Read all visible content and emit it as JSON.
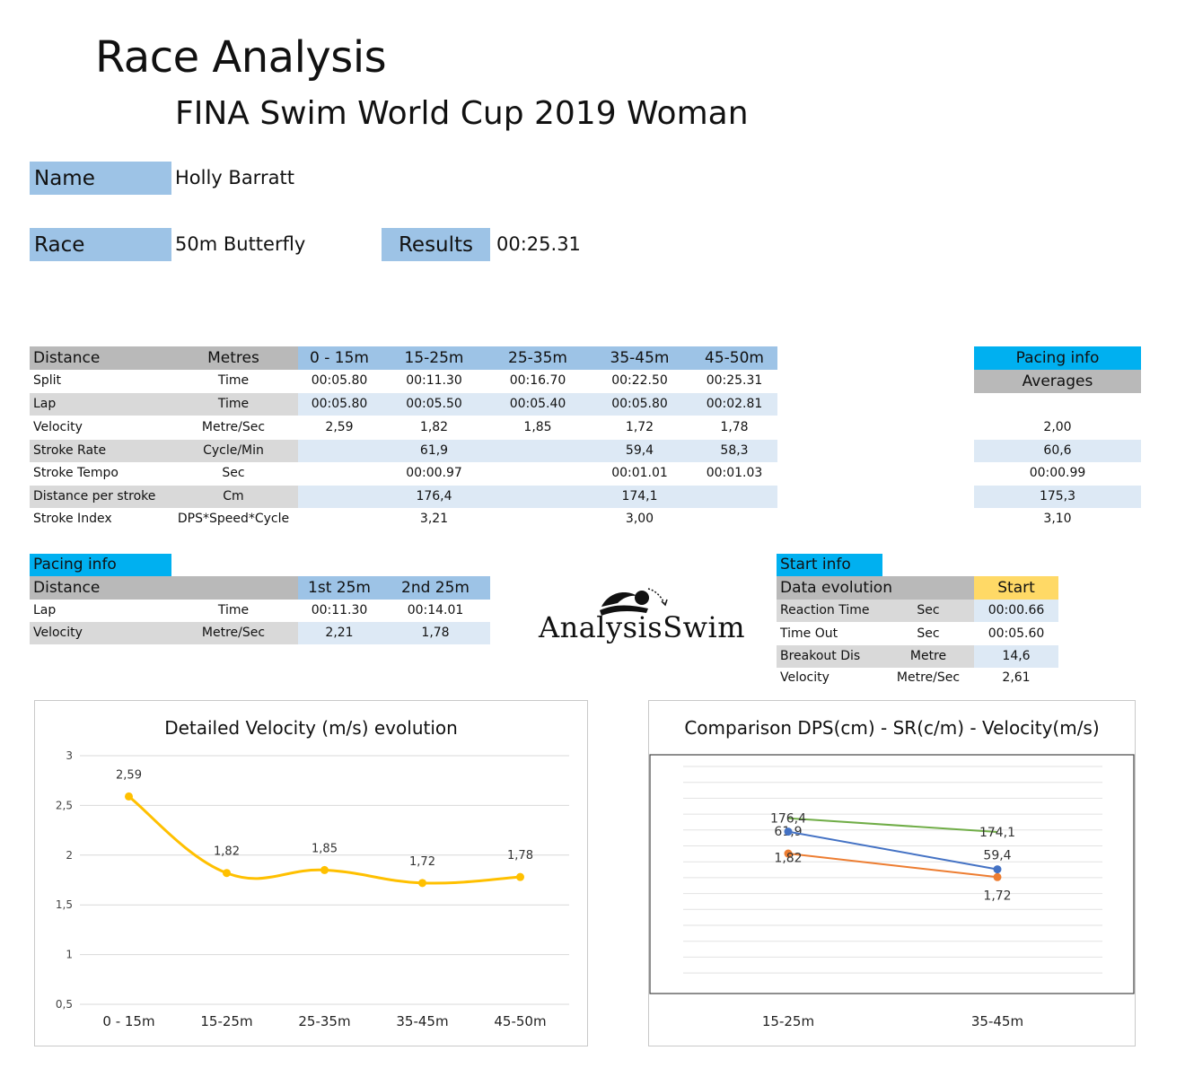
{
  "header": {
    "title": "Race Analysis",
    "subtitle": "FINA Swim World Cup 2019 Woman"
  },
  "athlete": {
    "name_label": "Name",
    "name_value": "Holly Barratt",
    "race_label": "Race",
    "race_value": "50m Butterfly",
    "results_label": "Results",
    "results_value": "00:25.31"
  },
  "splits_table": {
    "col_distance": "Distance",
    "col_metres": "Metres",
    "segments": [
      "0 - 15m",
      "15-25m",
      "25-35m",
      "35-45m",
      "45-50m"
    ],
    "rows": [
      {
        "label": "Split",
        "unit": "Time",
        "values": [
          "00:05.80",
          "00:11.30",
          "00:16.70",
          "00:22.50",
          "00:25.31"
        ],
        "avg": ""
      },
      {
        "label": "Lap",
        "unit": "Time",
        "values": [
          "00:05.80",
          "00:05.50",
          "00:05.40",
          "00:05.80",
          "00:02.81"
        ],
        "avg": ""
      },
      {
        "label": "Velocity",
        "unit": "Metre/Sec",
        "values": [
          "2,59",
          "1,82",
          "1,85",
          "1,72",
          "1,78"
        ],
        "avg": "2,00"
      },
      {
        "label": "Stroke Rate",
        "unit": "Cycle/Min",
        "values": [
          "",
          "61,9",
          "",
          "59,4",
          "58,3"
        ],
        "avg": "60,6"
      },
      {
        "label": "Stroke Tempo",
        "unit": "Sec",
        "values": [
          "",
          "00:00.97",
          "",
          "00:01.01",
          "00:01.03"
        ],
        "avg": "00:00.99"
      },
      {
        "label": "Distance per stroke",
        "unit": "Cm",
        "values": [
          "",
          "176,4",
          "",
          "174,1",
          ""
        ],
        "avg": "175,3"
      },
      {
        "label": "Stroke Index",
        "unit": "DPS*Speed*Cycle",
        "values": [
          "",
          "3,21",
          "",
          "3,00",
          ""
        ],
        "avg": "3,10"
      }
    ],
    "pacing_header": "Pacing info",
    "averages_header": "Averages"
  },
  "pacing_table": {
    "title": "Pacing info",
    "col_distance": "Distance",
    "cols": [
      "1st 25m",
      "2nd 25m"
    ],
    "rows": [
      {
        "label": "Lap",
        "unit": "Time",
        "values": [
          "00:11.30",
          "00:14.01"
        ]
      },
      {
        "label": "Velocity",
        "unit": "Metre/Sec",
        "values": [
          "2,21",
          "1,78"
        ]
      }
    ]
  },
  "logo": {
    "text": "AnalysisSwim"
  },
  "start_table": {
    "title": "Start info",
    "col_label": "Data evolution",
    "col_value": "Start",
    "rows": [
      {
        "label": "Reaction Time",
        "unit": "Sec",
        "value": "00:00.66"
      },
      {
        "label": "Time Out",
        "unit": "Sec",
        "value": "00:05.60"
      },
      {
        "label": "Breakout Dis",
        "unit": "Metre",
        "value": "14,6"
      },
      {
        "label": "Velocity",
        "unit": "Metre/Sec",
        "value": "2,61"
      }
    ]
  },
  "chart_data": [
    {
      "type": "line",
      "title": "Detailed Velocity (m/s)  evolution",
      "categories": [
        "0 - 15m",
        "15-25m",
        "25-35m",
        "35-45m",
        "45-50m"
      ],
      "series": [
        {
          "values": [
            2.59,
            1.82,
            1.85,
            1.72,
            1.78
          ],
          "labels": [
            "2,59",
            "1,82",
            "1,85",
            "1,72",
            "1,78"
          ],
          "color": "#ffc000"
        }
      ],
      "yticks": [
        "0,5",
        "1",
        "1,5",
        "2",
        "2,5",
        "3"
      ],
      "ylim": [
        0.5,
        3
      ],
      "grid": true,
      "smooth": true
    },
    {
      "type": "line",
      "title": "Comparison DPS(cm) - SR(c/m) - Velocity(m/s)",
      "categories": [
        "15-25m",
        "35-45m"
      ],
      "series": [
        {
          "values": [
            176.4,
            174.1
          ],
          "labels": [
            "176,4",
            "174,1"
          ],
          "color": "#70ad47"
        },
        {
          "values": [
            61.9,
            59.4
          ],
          "labels": [
            "61,9",
            "59,4"
          ],
          "color": "#ed7d31"
        },
        {
          "values": [
            1.82,
            1.72
          ],
          "labels": [
            "1,82",
            "1,72"
          ],
          "color": "#4472c4"
        }
      ],
      "grid": true
    }
  ]
}
